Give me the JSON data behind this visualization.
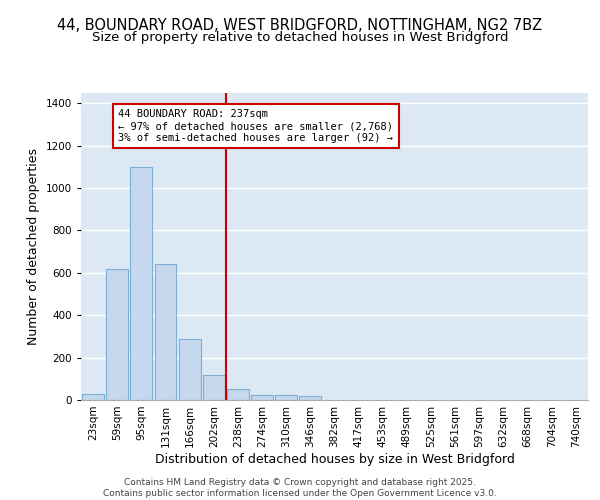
{
  "title_line1": "44, BOUNDARY ROAD, WEST BRIDGFORD, NOTTINGHAM, NG2 7BZ",
  "title_line2": "Size of property relative to detached houses in West Bridgford",
  "xlabel": "Distribution of detached houses by size in West Bridgford",
  "ylabel": "Number of detached properties",
  "categories": [
    "23sqm",
    "59sqm",
    "95sqm",
    "131sqm",
    "166sqm",
    "202sqm",
    "238sqm",
    "274sqm",
    "310sqm",
    "346sqm",
    "382sqm",
    "417sqm",
    "453sqm",
    "489sqm",
    "525sqm",
    "561sqm",
    "597sqm",
    "632sqm",
    "668sqm",
    "704sqm",
    "740sqm"
  ],
  "bar_heights": [
    30,
    620,
    1100,
    640,
    290,
    120,
    50,
    25,
    25,
    20,
    0,
    0,
    0,
    0,
    0,
    0,
    0,
    0,
    0,
    0,
    0
  ],
  "bar_color": "#c5d8ed",
  "bar_edge_color": "#7bafd4",
  "vline_color": "#cc0000",
  "annotation_text": "44 BOUNDARY ROAD: 237sqm\n← 97% of detached houses are smaller (2,768)\n3% of semi-detached houses are larger (92) →",
  "annotation_box_color": "#ffffff",
  "annotation_box_edge_color": "#cc0000",
  "ylim": [
    0,
    1450
  ],
  "yticks": [
    0,
    200,
    400,
    600,
    800,
    1000,
    1200,
    1400
  ],
  "plot_bg_color": "#dce9f5",
  "fig_bg_color": "#ffffff",
  "grid_color": "#ffffff",
  "footer_line1": "Contains HM Land Registry data © Crown copyright and database right 2025.",
  "footer_line2": "Contains public sector information licensed under the Open Government Licence v3.0.",
  "title_fontsize": 10.5,
  "subtitle_fontsize": 9.5,
  "axis_label_fontsize": 9,
  "tick_fontsize": 7.5,
  "annotation_fontsize": 7.5,
  "footer_fontsize": 6.5
}
